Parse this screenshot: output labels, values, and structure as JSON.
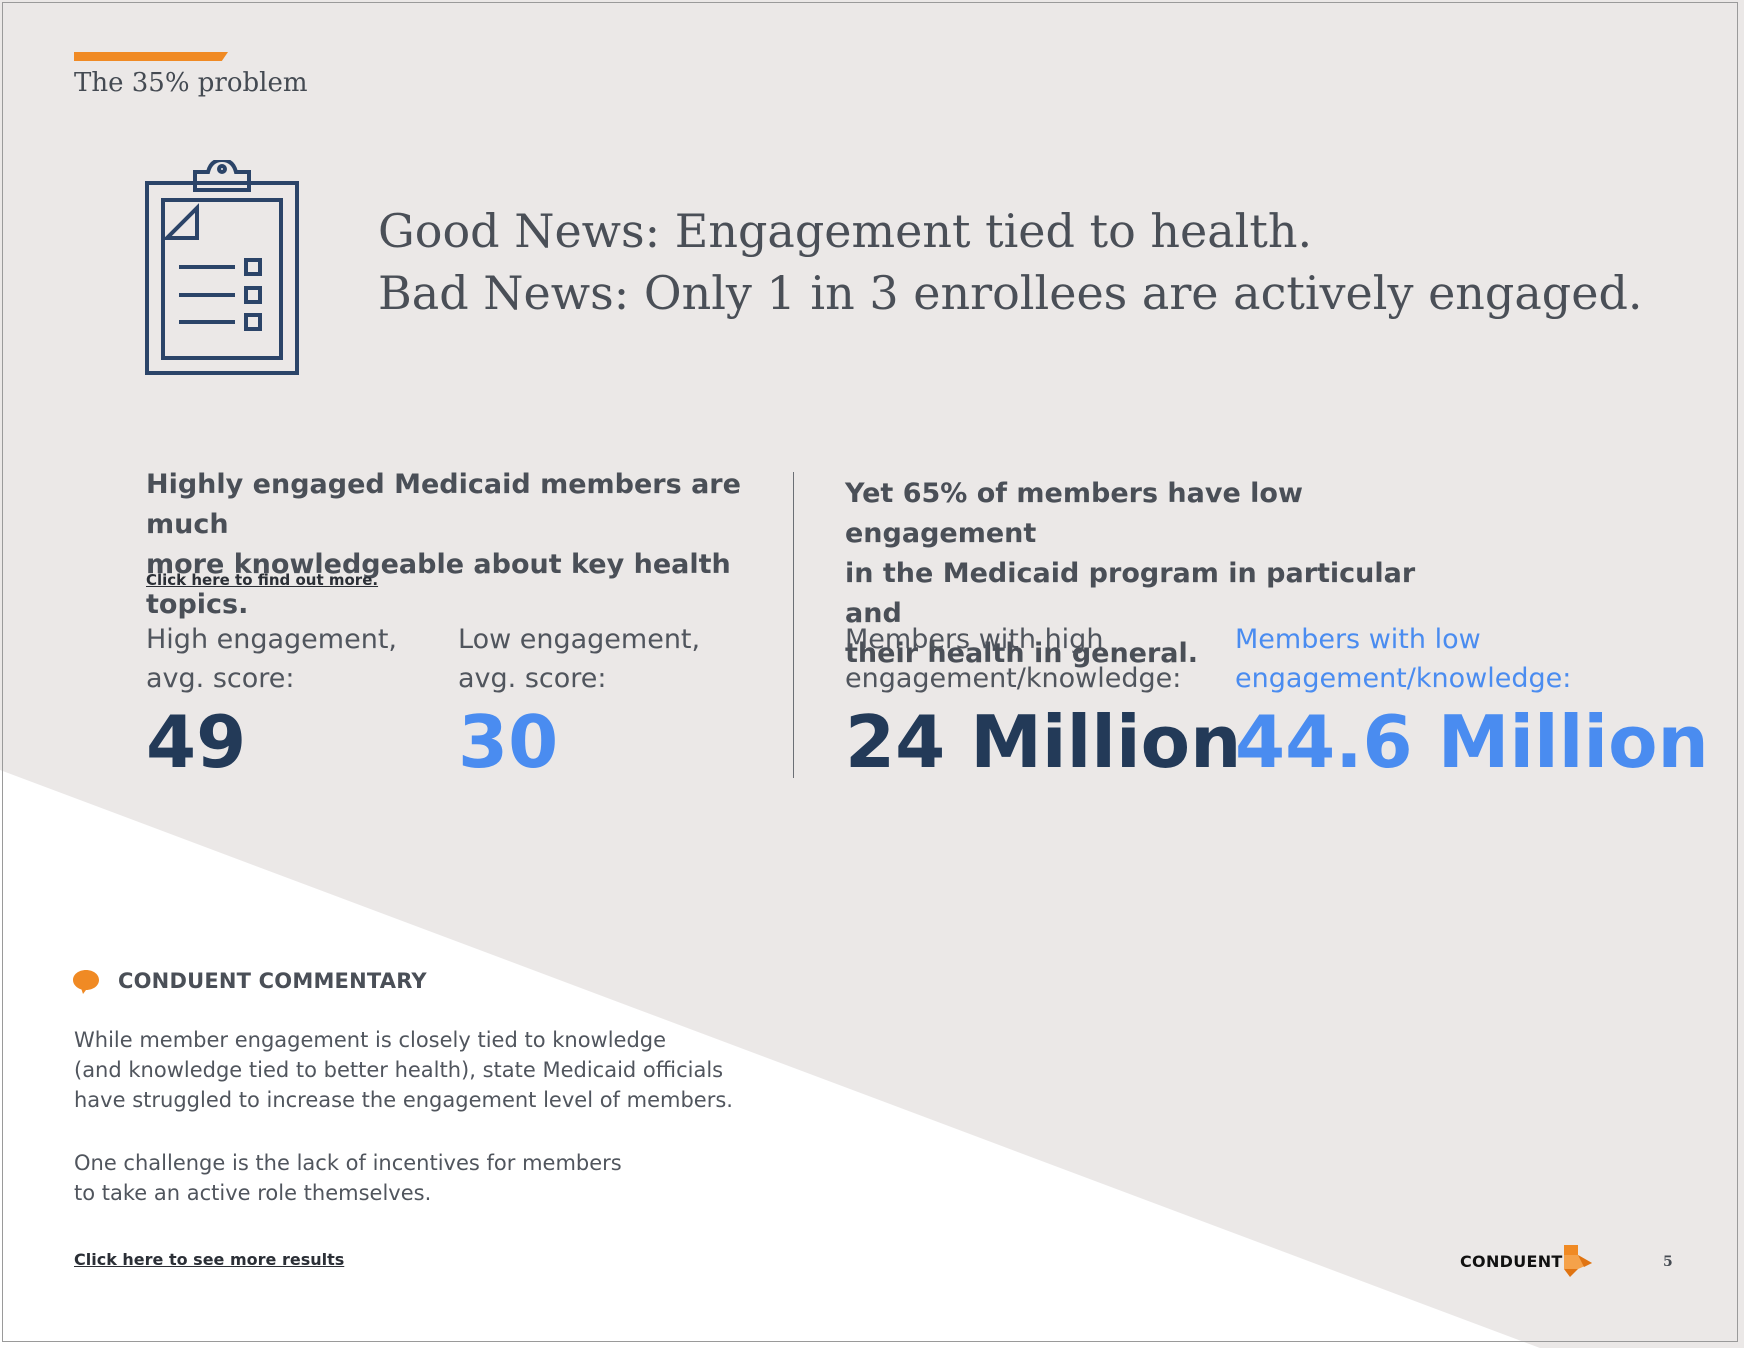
{
  "header": {
    "section_title": "The 35% problem"
  },
  "hero": {
    "icon": "clipboard-checklist-icon",
    "line1": "Good News: Engagement tied to health.",
    "line2": "Bad News: Only 1 in 3 enrollees are actively engaged."
  },
  "left": {
    "heading_line1": "Highly engaged Medicaid members are much",
    "heading_line2": "more knowledgeable about key health topics.",
    "link": "Click here to find out more.",
    "high": {
      "label_line1": "High engagement,",
      "label_line2": "avg. score:",
      "value": "49"
    },
    "low": {
      "label_line1": "Low engagement,",
      "label_line2": "avg. score:",
      "value": "30"
    }
  },
  "right": {
    "heading_line1": "Yet 65% of members have low engagement",
    "heading_line2": "in the Medicaid program in particular and",
    "heading_line3": "their health in general.",
    "high": {
      "label_line1": "Members with high",
      "label_line2": "engagement/knowledge:",
      "value": "24 Million"
    },
    "low": {
      "label_line1": "Members with low",
      "label_line2": "engagement/knowledge:",
      "value": "44.6 Million"
    }
  },
  "commentary": {
    "icon": "speech-bubble-icon",
    "title": "CONDUENT COMMENTARY",
    "para1": [
      "While member engagement is closely tied to knowledge",
      "(and knowledge tied to better health), state Medicaid officials",
      "have struggled to increase the engagement level of members."
    ],
    "para2": [
      "One challenge is the lack of incentives for members",
      "to take an active role themselves."
    ],
    "link": "Click here to see more results"
  },
  "footer": {
    "logo_text": "CONDUENT",
    "logo_icon": "conduent-logo-icon",
    "page_number": "5"
  },
  "colors": {
    "accent_orange": "#f08a24",
    "navy": "#233a58",
    "blue": "#4a8cf0",
    "panel_gray": "#ebe8e7"
  }
}
